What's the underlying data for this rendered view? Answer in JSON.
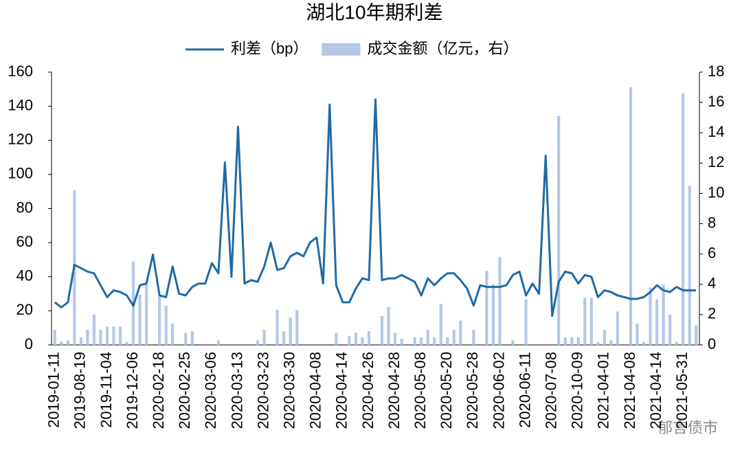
{
  "chart_data": {
    "type": "bar_line",
    "title": "湖北10年期利差",
    "watermark": "郁言债市",
    "categories": [
      "2019-01-11",
      null,
      null,
      null,
      "2019-08-19",
      null,
      null,
      null,
      "2019-11-04",
      null,
      null,
      null,
      "2019-12-06",
      null,
      null,
      null,
      "2020-02-18",
      null,
      null,
      null,
      "2020-02-25",
      null,
      null,
      null,
      "2020-03-06",
      null,
      null,
      null,
      "2020-03-13",
      null,
      null,
      null,
      "2020-03-23",
      null,
      null,
      null,
      "2020-03-30",
      null,
      null,
      null,
      "2020-04-08",
      null,
      null,
      null,
      "2020-04-14",
      null,
      null,
      null,
      "2020-04-26",
      null,
      null,
      null,
      "2020-04-28",
      null,
      null,
      null,
      "2020-05-08",
      null,
      null,
      null,
      "2020-05-20",
      null,
      null,
      null,
      "2020-05-28",
      null,
      null,
      null,
      "2020-06-02",
      null,
      null,
      null,
      "2020-06-11",
      null,
      null,
      null,
      "2020-07-08",
      null,
      null,
      null,
      "2020-10-09",
      null,
      null,
      null,
      "2021-04-01",
      null,
      null,
      null,
      "2021-04-08",
      null,
      null,
      null,
      "2021-04-14",
      null,
      null,
      null,
      "2021-05-31",
      null,
      null
    ],
    "series": [
      {
        "name": "利差（bp）",
        "type": "line",
        "color": "#1f6aa5",
        "values": [
          25,
          22,
          25,
          47,
          45,
          43,
          42,
          35,
          28,
          32,
          31,
          29,
          23,
          35,
          36,
          53,
          29,
          28,
          46,
          30,
          29,
          34,
          36,
          36,
          48,
          42,
          107,
          40,
          128,
          36,
          38,
          37,
          46,
          60,
          44,
          45,
          52,
          54,
          52,
          60,
          63,
          36,
          141,
          35,
          25,
          25,
          33,
          39,
          38,
          144,
          38,
          39,
          39,
          41,
          39,
          37,
          29,
          39,
          35,
          39,
          42,
          42,
          38,
          33,
          23,
          35,
          34,
          34,
          34,
          35,
          41,
          43,
          29,
          36,
          30,
          111,
          17,
          37,
          43,
          42,
          36,
          41,
          40,
          28,
          32,
          31,
          29,
          28,
          27,
          27,
          28,
          31,
          35,
          32,
          31,
          34,
          32,
          32,
          32
        ]
      },
      {
        "name": "成交金额（亿元，右）",
        "type": "bar",
        "axis": "y2",
        "color": "#b4c7e7",
        "values": [
          1.0,
          0.2,
          0.3,
          10.2,
          0.5,
          1.0,
          2.0,
          1.0,
          1.2,
          1.2,
          1.2,
          0.2,
          5.5,
          3.3,
          4.0,
          0,
          3.2,
          2.6,
          1.4,
          0,
          0.8,
          0.9,
          0,
          0,
          0,
          0.3,
          0,
          0,
          0,
          0,
          0,
          0.3,
          1.0,
          0,
          2.3,
          0.9,
          1.8,
          2.3,
          0,
          0,
          0,
          0,
          0,
          0.8,
          0,
          0.6,
          0.8,
          0.5,
          0.9,
          0,
          1.9,
          2.5,
          0.8,
          0.4,
          0,
          0.5,
          0.5,
          1.0,
          0.5,
          2.7,
          0.5,
          1.0,
          1.6,
          0,
          1.0,
          0,
          4.9,
          4.0,
          5.8,
          0,
          0.3,
          0,
          3.0,
          0,
          0,
          0,
          0,
          15.1,
          0.5,
          0.5,
          0.5,
          3.1,
          3.1,
          0.2,
          1.0,
          0.3,
          2.2,
          0,
          17.0,
          1.4,
          0.2,
          3.8,
          3.0,
          4.0,
          2.0,
          0.2,
          16.6,
          10.5,
          1.3
        ]
      }
    ],
    "ylim": [
      0,
      160
    ],
    "yticks": [
      0,
      20,
      40,
      60,
      80,
      100,
      120,
      140,
      160
    ],
    "y2lim": [
      0,
      18
    ],
    "y2ticks": [
      0,
      2,
      4,
      6,
      8,
      10,
      12,
      14,
      16,
      18
    ]
  }
}
